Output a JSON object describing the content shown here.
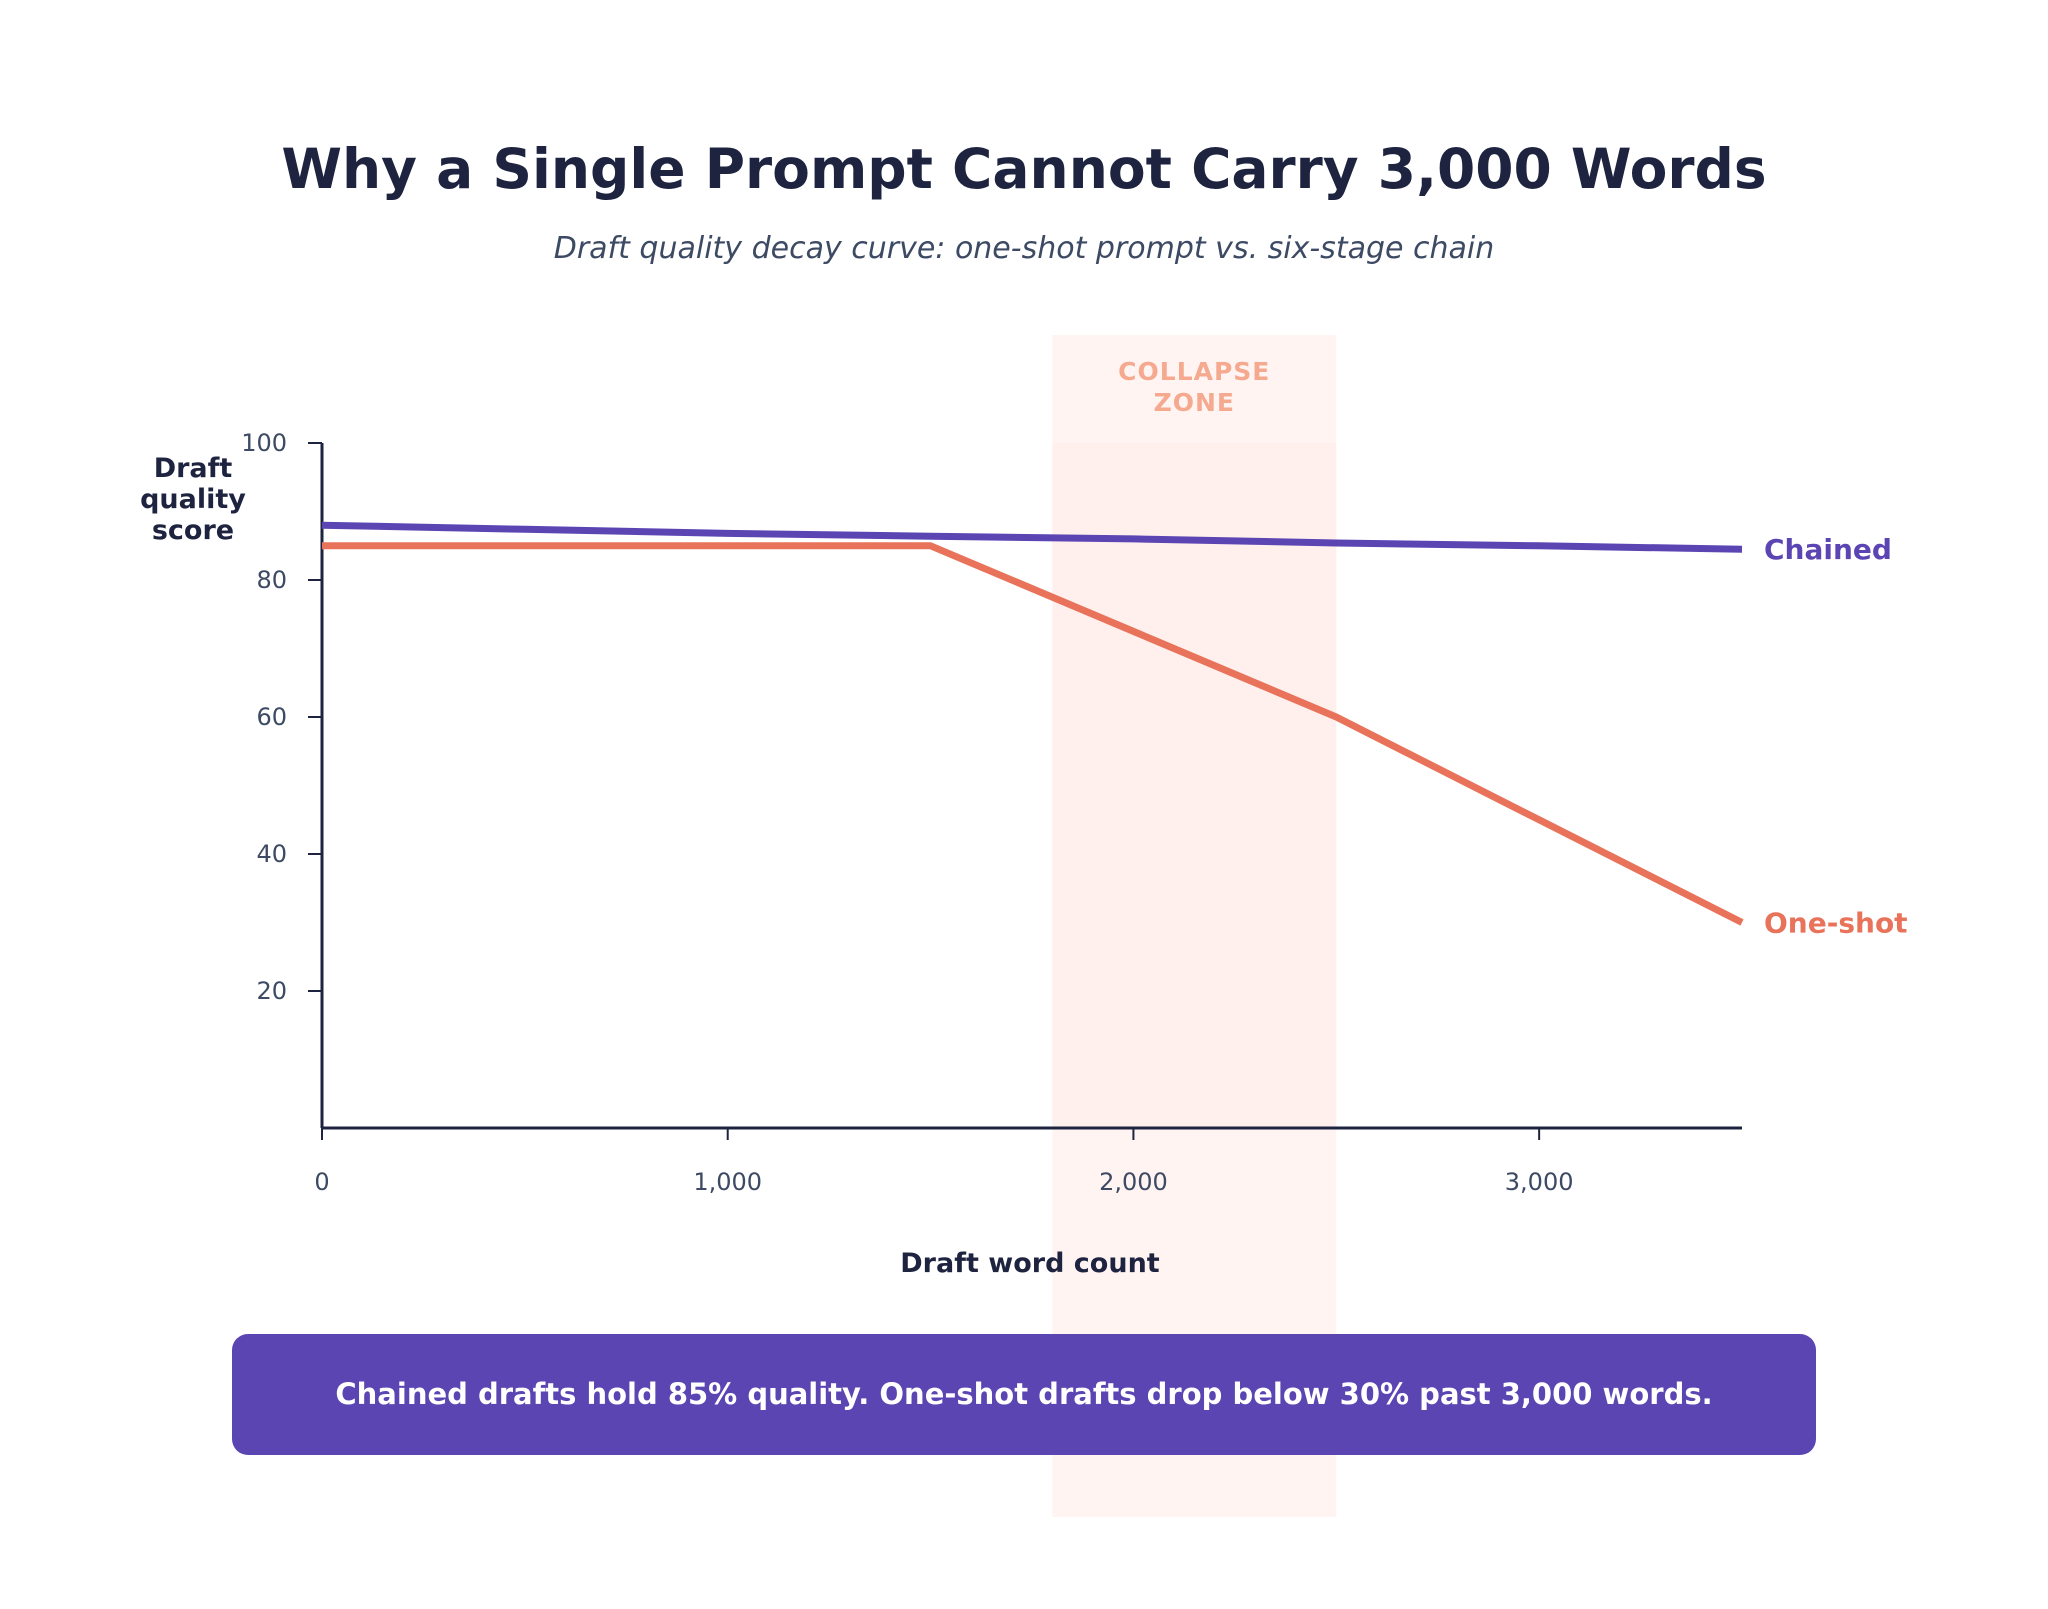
{
  "chart_data": {
    "type": "line",
    "title": "Why a Single Prompt Cannot Carry 3,000 Words",
    "subtitle": "Draft quality decay curve: one-shot prompt vs. six-stage chain",
    "xlabel": "Draft word count",
    "ylabel": [
      "Draft",
      "quality",
      "score"
    ],
    "xlim": [
      0,
      3500
    ],
    "ylim": [
      0,
      100
    ],
    "x_ticks": [
      {
        "value": 0,
        "label": "0"
      },
      {
        "value": 1000,
        "label": "1,000"
      },
      {
        "value": 2000,
        "label": "2,000"
      },
      {
        "value": 3000,
        "label": "3,000"
      }
    ],
    "y_ticks": [
      {
        "value": 20,
        "label": "20"
      },
      {
        "value": 40,
        "label": "40"
      },
      {
        "value": 60,
        "label": "60"
      },
      {
        "value": 80,
        "label": "80"
      },
      {
        "value": 100,
        "label": "100"
      }
    ],
    "grid": false,
    "series": [
      {
        "name": "Chained",
        "color": "#5b45b3",
        "points": [
          [
            0,
            88
          ],
          [
            500,
            87.4
          ],
          [
            1000,
            86.8
          ],
          [
            1500,
            86.4
          ],
          [
            2000,
            86
          ],
          [
            2500,
            85.4
          ],
          [
            3000,
            85
          ],
          [
            3500,
            84.5
          ]
        ]
      },
      {
        "name": "One-shot",
        "color": "#e8735a",
        "points": [
          [
            0,
            85
          ],
          [
            1500,
            85
          ],
          [
            2500,
            60
          ],
          [
            3000,
            45
          ],
          [
            3500,
            30
          ]
        ]
      }
    ],
    "annotations": [
      {
        "type": "band",
        "x_from": 1800,
        "x_to": 2500,
        "label": [
          "COLLAPSE",
          "ZONE"
        ],
        "color": "#fff0ee"
      }
    ],
    "callout": "Chained drafts hold 85% quality. One-shot drafts drop below 30% past 3,000 words.",
    "callout_color": "#5b45b3"
  }
}
